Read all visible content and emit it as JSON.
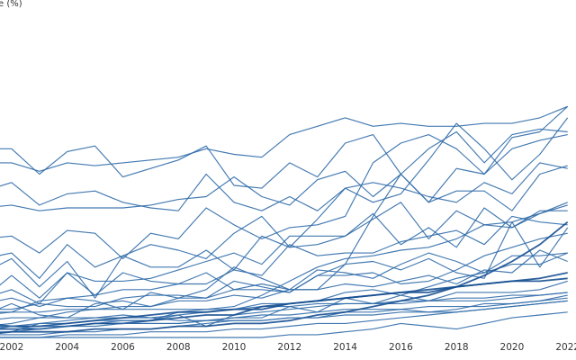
{
  "chart_data": {
    "type": "line",
    "ylabel": "e (%)",
    "xlabel": "",
    "x": [
      2001,
      2002,
      2003,
      2004,
      2005,
      2006,
      2007,
      2008,
      2009,
      2010,
      2011,
      2012,
      2013,
      2014,
      2015,
      2016,
      2017,
      2018,
      2019,
      2020,
      2021,
      2022
    ],
    "x_ticks": [
      2002,
      2004,
      2006,
      2008,
      2010,
      2012,
      2014,
      2016,
      2018,
      2020,
      2022
    ],
    "xlim": [
      2001,
      2022.3
    ],
    "ylim": [
      0,
      100
    ],
    "grid": false,
    "colors": {
      "line": "#2f6aa8",
      "line_bold": "#164f91"
    },
    "series": [
      {
        "values": [
          67,
          67,
          58,
          66,
          68,
          57,
          60,
          63,
          68,
          54,
          53,
          62,
          57,
          69,
          72,
          58,
          67,
          73,
          62,
          72,
          74,
          73
        ]
      },
      {
        "values": [
          62,
          62,
          59,
          62,
          61,
          62,
          63,
          64,
          67,
          65,
          64,
          72,
          75,
          78,
          75,
          76,
          75,
          75,
          76,
          76,
          78,
          82
        ]
      },
      {
        "values": [
          52,
          55,
          47,
          51,
          52,
          48,
          46,
          45,
          58,
          48,
          45,
          50,
          45,
          53,
          48,
          51,
          63,
          76,
          67,
          56,
          65,
          78
        ]
      },
      {
        "values": [
          46,
          47,
          45,
          46,
          46,
          46,
          47,
          49,
          50,
          57,
          50,
          47,
          56,
          59,
          50,
          58,
          48,
          52,
          52,
          45,
          58,
          61
        ]
      },
      {
        "values": [
          35,
          36,
          30,
          38,
          37,
          28,
          37,
          35,
          46,
          40,
          35,
          39,
          40,
          43,
          62,
          69,
          72,
          67,
          58,
          67,
          70,
          72
        ]
      },
      {
        "values": [
          14,
          22,
          14,
          23,
          15,
          23,
          20,
          19,
          23,
          17,
          17,
          16,
          22,
          26,
          43,
          58,
          48,
          60,
          58,
          71,
          73,
          82
        ]
      },
      {
        "values": [
          28,
          30,
          21,
          33,
          25,
          29,
          33,
          31,
          28,
          37,
          43,
          32,
          42,
          53,
          55,
          53,
          50,
          48,
          55,
          51,
          62,
          60
        ]
      },
      {
        "values": [
          23,
          28,
          18,
          27,
          14,
          29,
          25,
          25,
          31,
          24,
          36,
          32,
          33,
          36,
          42,
          48,
          35,
          45,
          40,
          39,
          44,
          48
        ]
      },
      {
        "values": [
          14,
          17,
          12,
          23,
          20,
          20,
          21,
          24,
          27,
          30,
          26,
          36,
          36,
          36,
          44,
          33,
          39,
          32,
          46,
          39,
          45,
          45
        ]
      },
      {
        "values": [
          8,
          9,
          13,
          14,
          15,
          17,
          17,
          19,
          19,
          24,
          22,
          33,
          29,
          30,
          30,
          34,
          36,
          38,
          33,
          43,
          41,
          40
        ]
      },
      {
        "values": [
          8,
          12,
          8,
          7,
          12,
          13,
          11,
          14,
          14,
          17,
          19,
          17,
          17,
          26,
          27,
          24,
          28,
          23,
          21,
          41,
          25,
          39
        ]
      },
      {
        "values": [
          2,
          4,
          4,
          4,
          5,
          6,
          6,
          9,
          10,
          11,
          15,
          20,
          25,
          28,
          29,
          31,
          32,
          35,
          40,
          41,
          44,
          47
        ]
      },
      {
        "values": [
          12,
          14,
          11,
          14,
          13,
          10,
          16,
          14,
          17,
          25,
          21,
          17,
          24,
          23,
          21,
          26,
          30,
          27,
          23,
          29,
          29,
          30
        ]
      },
      {
        "values": [
          10,
          10,
          12,
          11,
          11,
          14,
          15,
          15,
          14,
          20,
          18,
          16,
          22,
          22,
          23,
          19,
          20,
          24,
          29,
          32,
          35,
          37
        ]
      },
      {
        "values": [
          4,
          5,
          7,
          9,
          10,
          11,
          11,
          13,
          13,
          15,
          14,
          17,
          17,
          19,
          18,
          20,
          22,
          19,
          24,
          23,
          31,
          27
        ]
      },
      {
        "values": [
          2,
          2,
          5,
          6,
          7,
          8,
          7,
          8,
          9,
          10,
          12,
          12,
          13,
          16,
          17,
          15,
          18,
          21,
          23,
          26,
          26,
          30
        ]
      },
      {
        "values": [
          1,
          2,
          3,
          4,
          5,
          5,
          5,
          5,
          6,
          7,
          7,
          11,
          9,
          14,
          12,
          15,
          13,
          16,
          16,
          16,
          17,
          20
        ]
      },
      {
        "values": [
          1,
          1,
          1,
          2,
          2,
          3,
          3,
          4,
          5,
          6,
          6,
          7,
          7,
          9,
          9,
          10,
          9,
          10,
          12,
          12,
          13,
          15
        ]
      },
      {
        "values": [
          6,
          7,
          7,
          7,
          7,
          7,
          7,
          6,
          6,
          7,
          8,
          8,
          9,
          10,
          10,
          10,
          11,
          11,
          11,
          12,
          13,
          14
        ]
      },
      {
        "values": [
          9,
          9,
          9,
          10,
          10,
          10,
          10,
          10,
          10,
          10,
          11,
          11,
          12,
          12,
          12,
          13,
          13,
          14,
          14,
          15,
          15,
          16
        ]
      },
      {
        "values": [
          3,
          4,
          5,
          5,
          6,
          6,
          6,
          8,
          4,
          8,
          9,
          10,
          11,
          12,
          12,
          12,
          13,
          13,
          13,
          14,
          15,
          16
        ]
      },
      {
        "values": [
          0,
          0,
          0,
          0,
          0,
          0,
          0,
          0,
          0,
          0,
          0,
          1,
          1,
          2,
          3,
          5,
          4,
          3,
          5,
          7,
          8,
          9
        ]
      },
      {
        "values": [
          5,
          4,
          4,
          5,
          6,
          7,
          8,
          9,
          9,
          10,
          10,
          12,
          13,
          14,
          15,
          16,
          16,
          18,
          19,
          20,
          21,
          23
        ],
        "bold": true
      },
      {
        "values": [
          3,
          3,
          3,
          4,
          5,
          5,
          6,
          7,
          8,
          8,
          11,
          12,
          13,
          14,
          15,
          16,
          17,
          18,
          19,
          20,
          20,
          21
        ],
        "bold": true
      },
      {
        "values": [
          1,
          2,
          2,
          2,
          3,
          3,
          3,
          4,
          4,
          5,
          5,
          6,
          8,
          9,
          11,
          13,
          15,
          18,
          22,
          27,
          33,
          41
        ],
        "bold": true
      },
      {
        "values": [
          0,
          0,
          0,
          1,
          1,
          1,
          2,
          2,
          2,
          3,
          3,
          4,
          5,
          5,
          6,
          7,
          8,
          9,
          10,
          11,
          12,
          13
        ]
      },
      {
        "values": [
          4,
          4,
          3,
          4,
          4,
          5,
          5,
          5,
          6,
          6,
          6,
          7,
          7,
          8,
          8,
          9,
          9,
          9,
          10,
          11,
          12,
          13
        ]
      }
    ]
  }
}
